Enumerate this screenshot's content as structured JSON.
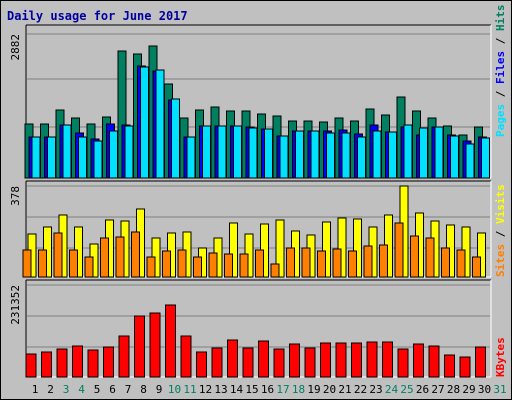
{
  "chart_data": [
    {
      "type": "bar",
      "title": "Daily usage for June 2017",
      "panel": "hits-files-pages",
      "ymax_label": "2882",
      "ylim": [
        0,
        2882
      ],
      "categories": [
        "1",
        "2",
        "3",
        "4",
        "5",
        "6",
        "7",
        "8",
        "9",
        "10",
        "11",
        "12",
        "13",
        "14",
        "15",
        "16",
        "17",
        "18",
        "19",
        "20",
        "21",
        "22",
        "23",
        "24",
        "25",
        "26",
        "27",
        "28",
        "29",
        "30",
        "31"
      ],
      "weekend_days": [
        "3",
        "4",
        "10",
        "11",
        "17",
        "18",
        "24",
        "25",
        "31"
      ],
      "series": [
        {
          "name": "Hits",
          "color": "#008060",
          "values": [
            1090,
            1090,
            1360,
            1200,
            1080,
            1230,
            2540,
            2480,
            2640,
            1890,
            1210,
            1360,
            1420,
            1350,
            1350,
            1280,
            1250,
            1150,
            1150,
            1120,
            1200,
            1150,
            1380,
            1270,
            1620,
            1340,
            1200,
            1050,
            860,
            1020,
            0
          ]
        },
        {
          "name": "Files",
          "color": "#0000ff",
          "values": [
            820,
            820,
            1060,
            910,
            790,
            1080,
            1060,
            2250,
            2150,
            1570,
            830,
            1040,
            1050,
            1050,
            1020,
            990,
            850,
            950,
            950,
            950,
            970,
            880,
            1060,
            930,
            1020,
            860,
            1020,
            860,
            740,
            820,
            0
          ]
        },
        {
          "name": "Pages",
          "color": "#00e0ff",
          "values": [
            820,
            820,
            1060,
            820,
            740,
            950,
            1040,
            2220,
            2160,
            1580,
            830,
            1040,
            1050,
            1040,
            1010,
            980,
            840,
            940,
            940,
            900,
            900,
            820,
            950,
            930,
            1060,
            1000,
            1020,
            850,
            680,
            800,
            0
          ]
        }
      ]
    },
    {
      "type": "bar",
      "panel": "visits-sites",
      "ymax_label": "378",
      "ylim": [
        0,
        378
      ],
      "categories": [
        "1",
        "2",
        "3",
        "4",
        "5",
        "6",
        "7",
        "8",
        "9",
        "10",
        "11",
        "12",
        "13",
        "14",
        "15",
        "16",
        "17",
        "18",
        "19",
        "20",
        "21",
        "22",
        "23",
        "24",
        "25",
        "26",
        "27",
        "28",
        "29",
        "30",
        "31"
      ],
      "series": [
        {
          "name": "Visits",
          "color": "#ffff00",
          "values": [
            180,
            207,
            256,
            207,
            135,
            238,
            234,
            284,
            163,
            184,
            185,
            121,
            162,
            224,
            177,
            219,
            236,
            191,
            176,
            228,
            244,
            241,
            207,
            256,
            378,
            264,
            234,
            218,
            206,
            181,
            0
          ]
        },
        {
          "name": "Sites",
          "color": "#ff8000",
          "values": [
            112,
            112,
            184,
            112,
            85,
            162,
            166,
            188,
            84,
            108,
            111,
            84,
            98,
            96,
            96,
            111,
            54,
            121,
            119,
            108,
            118,
            108,
            127,
            133,
            226,
            170,
            162,
            121,
            112,
            84,
            0
          ]
        }
      ]
    },
    {
      "type": "bar",
      "panel": "kbytes",
      "ymax_label": "231352",
      "ylim": [
        0,
        231352
      ],
      "categories": [
        "1",
        "2",
        "3",
        "4",
        "5",
        "6",
        "7",
        "8",
        "9",
        "10",
        "11",
        "12",
        "13",
        "14",
        "15",
        "16",
        "17",
        "18",
        "19",
        "20",
        "21",
        "22",
        "23",
        "24",
        "25",
        "26",
        "27",
        "28",
        "29",
        "30",
        "31"
      ],
      "series": [
        {
          "name": "KBytes",
          "color": "#ff0000",
          "values": [
            58000,
            62000,
            71000,
            78000,
            67000,
            76000,
            102000,
            154000,
            162000,
            182000,
            104000,
            63000,
            74000,
            93000,
            73000,
            90000,
            70000,
            82000,
            72000,
            86000,
            85000,
            86000,
            87000,
            89000,
            70000,
            82000,
            77000,
            56000,
            51000,
            76000,
            0
          ]
        }
      ]
    }
  ]
}
